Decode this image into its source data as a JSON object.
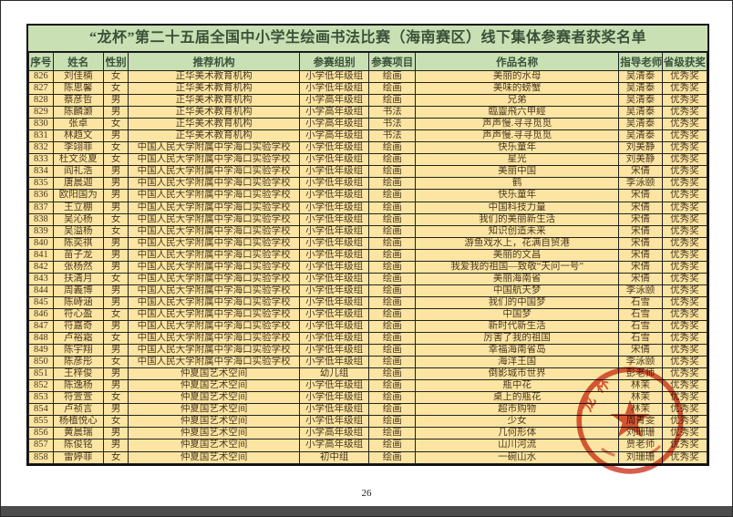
{
  "title": "“龙杯”第二十五届全国中小学生绘画书法比赛（海南赛区）线下集体参赛者获奖名单",
  "page_number": "26",
  "colors": {
    "title_bg": "#c8e0b4",
    "header_bg": "#c8e0b4",
    "row_bg": "#fce5a2",
    "title_text": "#3a5138",
    "body_text": "#4b3a20",
    "stamp_red": "#cf3a26"
  },
  "stamp": {
    "shape": "circular-seal",
    "has_star": true,
    "visible_text": "龙杯",
    "color": "#cf3a26"
  },
  "table": {
    "headers": [
      "序号",
      "姓名",
      "性别",
      "推荐机构",
      "参赛组别",
      "参赛项目",
      "作品名称",
      "指导老师",
      "省级获奖"
    ],
    "rows": [
      [
        "826",
        "刘佳楠",
        "女",
        "正华美术教育机构",
        "小学低年级组",
        "绘画",
        "美丽的水母",
        "吴清泰",
        "优秀奖"
      ],
      [
        "827",
        "陈思馨",
        "女",
        "正华美术教育机构",
        "小学低年级组",
        "绘画",
        "美味的螃蟹",
        "吴清泰",
        "优秀奖"
      ],
      [
        "828",
        "蔡彦哲",
        "男",
        "正华美术教育机构",
        "小学高年级组",
        "绘画",
        "兄弟",
        "吴清泰",
        "优秀奖"
      ],
      [
        "829",
        "陈麟灏",
        "男",
        "正华美术教育机构",
        "小学高年级组",
        "书法",
        "臨靈飛六甲經",
        "吴清泰",
        "优秀奖"
      ],
      [
        "830",
        "张卓",
        "女",
        "正华美术教育机构",
        "小学高年级组",
        "书法",
        "声声慢.寻寻觅觅",
        "吴清泰",
        "优秀奖"
      ],
      [
        "831",
        "林趋文",
        "男",
        "正华美术教育机构",
        "小学高年级组",
        "书法",
        "声声慢.寻寻觅觅",
        "吴清泰",
        "优秀奖"
      ],
      [
        "832",
        "李翊菲",
        "女",
        "中国人民大学附属中学海口实验学校",
        "小学低年级组",
        "绘画",
        "快乐童年",
        "刘美静",
        "优秀奖"
      ],
      [
        "833",
        "杜文炎夏",
        "女",
        "中国人民大学附属中学海口实验学校",
        "小学低年级组",
        "绘画",
        "星光",
        "刘美静",
        "优秀奖"
      ],
      [
        "834",
        "阎礼浩",
        "男",
        "中国人民大学附属中学海口实验学校",
        "小学低年级组",
        "绘画",
        "美丽中国",
        "宋倩",
        "优秀奖"
      ],
      [
        "835",
        "唐晨迦",
        "男",
        "中国人民大学附属中学海口实验学校",
        "小学低年级组",
        "绘画",
        "鹤",
        "李泳颐",
        "优秀奖"
      ],
      [
        "836",
        "欧阳国为",
        "男",
        "中国人民大学附属中学海口实验学校",
        "小学低年级组",
        "绘画",
        "快乐童年",
        "宋倩",
        "优秀奖"
      ],
      [
        "837",
        "王立棚",
        "男",
        "中国人民大学附属中学海口实验学校",
        "小学低年级组",
        "绘画",
        "中国科技力量",
        "宋倩",
        "优秀奖"
      ],
      [
        "838",
        "吴沁杨",
        "女",
        "中国人民大学附属中学海口实验学校",
        "小学低年级组",
        "绘画",
        "我们的美丽新生活",
        "宋倩",
        "优秀奖"
      ],
      [
        "839",
        "吴溢杨",
        "女",
        "中国人民大学附属中学海口实验学校",
        "小学低年级组",
        "绘画",
        "知识创造未来",
        "宋倩",
        "优秀奖"
      ],
      [
        "840",
        "陈奕祺",
        "男",
        "中国人民大学附属中学海口实验学校",
        "小学低年级组",
        "绘画",
        "游鱼戏水上，花满自贸港",
        "宋倩",
        "优秀奖"
      ],
      [
        "841",
        "苗子龙",
        "男",
        "中国人民大学附属中学海口实验学校",
        "小学低年级组",
        "绘画",
        "美丽的文昌",
        "宋倩",
        "优秀奖"
      ],
      [
        "842",
        "张杨然",
        "男",
        "中国人民大学附属中学海口实验学校",
        "小学低年级组",
        "绘画",
        "我爱我的祖国—致敬“天问一号”",
        "宋倩",
        "优秀奖"
      ],
      [
        "843",
        "扶清月",
        "女",
        "中国人民大学附属中学海口实验学校",
        "小学低年级组",
        "绘画",
        "美丽海南省",
        "宋倩",
        "优秀奖"
      ],
      [
        "844",
        "周義博",
        "男",
        "中国人民大学附属中学海口实验学校",
        "小学低年级组",
        "绘画",
        "中国航天梦",
        "李泳颐",
        "优秀奖"
      ],
      [
        "845",
        "陈峙涵",
        "男",
        "中国人民大学附属中学海口实验学校",
        "小学低年级组",
        "绘画",
        "我们的中国梦",
        "石雪",
        "优秀奖"
      ],
      [
        "846",
        "符心盈",
        "女",
        "中国人民大学附属中学海口实验学校",
        "小学低年级组",
        "绘画",
        "中国梦",
        "石雪",
        "优秀奖"
      ],
      [
        "847",
        "符嘉奇",
        "男",
        "中国人民大学附属中学海口实验学校",
        "小学低年级组",
        "绘画",
        "新时代新生活",
        "石雪",
        "优秀奖"
      ],
      [
        "848",
        "卢裕霜",
        "女",
        "中国人民大学附属中学海口实验学校",
        "小学低年级组",
        "绘画",
        "厉害了我的祖国",
        "石雪",
        "优秀奖"
      ],
      [
        "849",
        "陈宇翔",
        "男",
        "中国人民大学附属中学海口实验学校",
        "小学低年级组",
        "绘画",
        "幸福海南省岛",
        "宋倩",
        "优秀奖"
      ],
      [
        "850",
        "陈彦彤",
        "女",
        "中国人民大学附属中学海口实验学校",
        "小学低年级组",
        "绘画",
        "海洋王国",
        "李泳颐",
        "优秀奖"
      ],
      [
        "851",
        "王梓俊",
        "男",
        "仲夏国艺术空间",
        "幼儿组",
        "绘画",
        "倒影城市世界",
        "彭老师",
        "优秀奖"
      ],
      [
        "852",
        "陈逸杨",
        "男",
        "仲夏国艺术空间",
        "小学低年级组",
        "绘画",
        "瓶中花",
        "林茉",
        "优秀奖"
      ],
      [
        "853",
        "符萱萱",
        "女",
        "仲夏国艺术空间",
        "小学低年级组",
        "绘画",
        "桌上的瓶花",
        "林茉",
        "优秀奖"
      ],
      [
        "854",
        "卢祯言",
        "男",
        "仲夏国艺术空间",
        "小学低年级组",
        "绘画",
        "超市购物",
        "林茉",
        "优秀奖"
      ],
      [
        "855",
        "杨植悦心",
        "女",
        "仲夏国艺术空间",
        "小学低年级组",
        "绘画",
        "少女",
        "周青雯",
        "优秀奖"
      ],
      [
        "856",
        "黄晨瑞",
        "男",
        "仲夏国艺术空间",
        "小学高年级组",
        "绘画",
        "几何形体",
        "刘珊珊",
        "优秀奖"
      ],
      [
        "857",
        "陈俊铭",
        "男",
        "仲夏国艺术空间",
        "小学高年级组",
        "绘画",
        "山川河流",
        "贾老师",
        "优秀奖"
      ],
      [
        "858",
        "雷婷菲",
        "女",
        "仲夏国艺术空间",
        "初中组",
        "绘画",
        "一碗山水",
        "刘珊珊",
        "优秀奖"
      ]
    ]
  }
}
